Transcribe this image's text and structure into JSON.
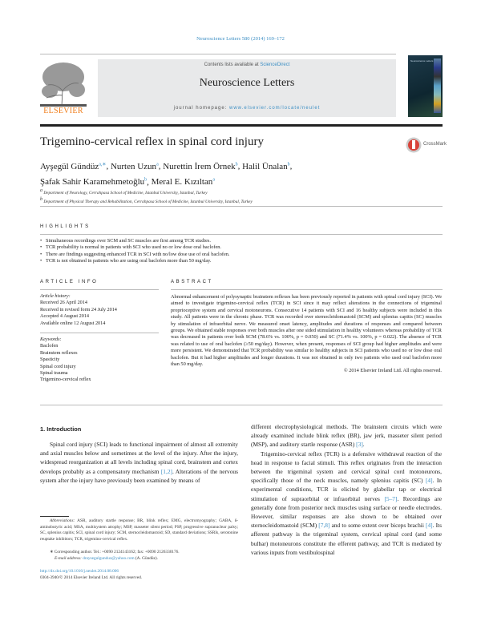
{
  "header": {
    "journal_ref": "Neuroscience Letters 580 (2014) 169–172",
    "contents_prefix": "Contents lists available at ",
    "contents_link": "ScienceDirect",
    "journal_title": "Neuroscience Letters",
    "homepage_prefix": "journal homepage: ",
    "homepage_url": "www.elsevier.com/locate/neulet",
    "publisher_logo": "ELSEVIER",
    "cover_title": "Neuroscience Letters"
  },
  "article": {
    "title": "Trigemino-cervical reflex in spinal cord injury",
    "crossmark": "CrossMark",
    "authors_line1": [
      {
        "name": "Ayşegül Gündüz",
        "sup": "a,∗"
      },
      {
        "name": "Nurten Uzun",
        "sup": "a"
      },
      {
        "name": "Nurettin İrem Örnek",
        "sup": "b"
      },
      {
        "name": "Halil Ünalan",
        "sup": "b"
      }
    ],
    "authors_line2": [
      {
        "name": "Şafak Sahir Karamehmetoğlu",
        "sup": "b"
      },
      {
        "name": "Meral E. Kızıltan",
        "sup": "a"
      }
    ],
    "affiliations": [
      {
        "sup": "a",
        "text": "Department of Neurology, Cerrahpasa School of Medicine, Istanbul University, Istanbul, Turkey"
      },
      {
        "sup": "b",
        "text": "Department of Physical Therapy and Rehabilitation, Cerrahpasa School of Medicine, Istanbul University, Istanbul, Turkey"
      }
    ]
  },
  "highlights": {
    "heading": "HIGHLIGHTS",
    "items": [
      "Simultaneous recordings over SCM and SC muscles are first among TCR studies.",
      "TCR probability is normal in patients with SCI who used no or low dose oral baclofen.",
      "There are findings suggesting enhanced TCR in SCI with no/low dose use of oral baclofen.",
      "TCR is not obtained in patients who are using oral baclofen more than 50 mg/day."
    ]
  },
  "article_info": {
    "heading": "ARTICLE INFO",
    "history_label": "Article history:",
    "history": [
      "Received 26 April 2014",
      "Received in revised form 24 July 2014",
      "Accepted 4 August 2014",
      "Available online 12 August 2014"
    ],
    "keywords_label": "Keywords:",
    "keywords": [
      "Baclofen",
      "Brainstem reflexes",
      "Spasticity",
      "Spinal cord injury",
      "Spinal trauma",
      "Trigemino-cervical reflex"
    ]
  },
  "abstract": {
    "heading": "ABSTRACT",
    "text": "Abnormal enhancement of polysynaptic brainstem reflexes has been previously reported in patients with spinal cord injury (SCI). We aimed to investigate trigemino-cervical reflex (TCR) in SCI since it may reflect alterations in the connections of trigeminal proprioceptive system and cervical motoneurons. Consecutive 14 patients with SCI and 16 healthy subjects were included in this study. All patients were in the chronic phase. TCR was recorded over sternocleidomastoid (SCM) and splenius capitis (SC) muscles by stimulation of infraorbital nerve. We measured onset latency, amplitudes and durations of responses and compared between groups. We obtained stable responses over both muscles after one sided stimulation in healthy volunteers whereas probability of TCR was decreased in patients over both SCM (78.6% vs. 100%, p = 0.050) and SC (71.4% vs. 100%, p = 0.022). The absence of TCR was related to use of oral baclofen (≥50 mg/day). However, when present, responses of SCI group had higher amplitudes and were more persistent. We demonstrated that TCR probability was similar to healthy subjects in SCI patients who used no or low dose oral baclofen. But it had higher amplitudes and longer durations. It was not obtained in only two patients who used oral baclofen more than 50 mg/day.",
    "copyright": "© 2014 Elsevier Ireland Ltd. All rights reserved."
  },
  "intro": {
    "heading": "1.  Introduction",
    "left_p1_a": "Spinal cord injury (SCI) leads to functional impairment of almost all extremity and axial muscles below and sometimes at the level of the injury. After the injury, widespread reorganization at all levels including spinal cord, brainstem and cortex develops probably as a compensatory mechanism ",
    "ref_1_2": "[1,2]",
    "left_p1_b": ". Alterations of the nervous system after the injury have previously been examined by means of",
    "right_p1_a": "different electrophysiological methods. The brainstem circuits which were already examined include blink reflex (BR), jaw jerk, masseter silent period (MSP), and auditory startle response (ASR) ",
    "ref_3": "[3]",
    "right_p1_b": ".",
    "right_p2_a": "Trigemino-cervical reflex (TCR) is a defensive withdrawal reaction of the head in response to facial stimuli. This reflex originates from the interaction between the trigeminal system and cervical spinal cord motoneurons, specifically those of the neck muscles, namely splenius capitis (SC) ",
    "ref_4a": "[4]",
    "right_p2_b": ". In experimental conditions, TCR is elicited by glabellar tap or electrical stimulation of supraorbital or infraorbital nerves ",
    "ref_5_7": "[5–7]",
    "right_p2_c": ". Recordings are generally done from posterior neck muscles using surface or needle electrodes. However, similar responses are also shown to be obtained over sternocleidomastoid (SCM) ",
    "ref_7_8": "[7,8]",
    "right_p2_d": " and to some extent over biceps brachii ",
    "ref_4b": "[4]",
    "right_p2_e": ". Its afferent pathway is the trigeminal system, cervical spinal cord (and some bulbar) motoneurons constitute the efferent pathway, and TCR is mediated by various inputs from vestibulospinal"
  },
  "footnotes": {
    "abbr_label": "Abbreviations:",
    "abbr_text": " ASR, auditory startle response; BR, blink reflex; EMG, electromyography; GABA, δ-aminobutyric acid; MSA, multisystem atrophy; MSP, masseter silent period; PSP, progressive supranuclear palsy; SC, splenius capitis; SCI, spinal cord injury; SCM, sternocleidomastoid; SD, standard deviations; SSRIs, serotonine reuptake inhibitors; TCR, trigemino-cervical reflex.",
    "corresponding": "∗  Corresponding author. Tel.: +0090 2124143162; fax: +0090 2126330176.",
    "email_label": "E-mail address: ",
    "email": "draysegulgunduz@yahoo.com",
    "email_suffix": " (A. Gündüz).",
    "doi": "http://dx.doi.org/10.1016/j.neulet.2014.08.006",
    "issn": "0304-3940/© 2014 Elsevier Ireland Ltd. All rights reserved."
  },
  "colors": {
    "link": "#3d8fc4",
    "elsevier_orange": "#f07d1a",
    "masthead_gray": "#e8e9ea"
  }
}
